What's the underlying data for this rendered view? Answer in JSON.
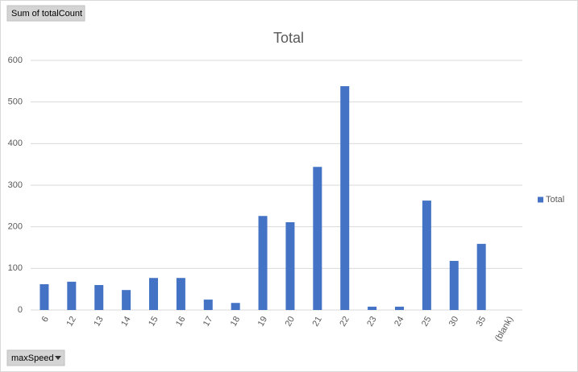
{
  "chart_data": {
    "type": "bar",
    "title": "Total",
    "value_field_button": "Sum of totalCount",
    "axis_field_button": "maxSpeed",
    "categories": [
      "6",
      "12",
      "13",
      "14",
      "15",
      "16",
      "17",
      "18",
      "19",
      "20",
      "21",
      "22",
      "23",
      "24",
      "25",
      "30",
      "35",
      "(blank)"
    ],
    "series": [
      {
        "name": "Total",
        "color": "#4472c4",
        "values": [
          62,
          68,
          60,
          48,
          77,
          77,
          25,
          17,
          226,
          211,
          344,
          538,
          8,
          8,
          263,
          118,
          159,
          null
        ]
      }
    ],
    "ylim": [
      0,
      600
    ],
    "yticks": [
      0,
      100,
      200,
      300,
      400,
      500,
      600
    ],
    "grid": true,
    "legend": "right"
  }
}
